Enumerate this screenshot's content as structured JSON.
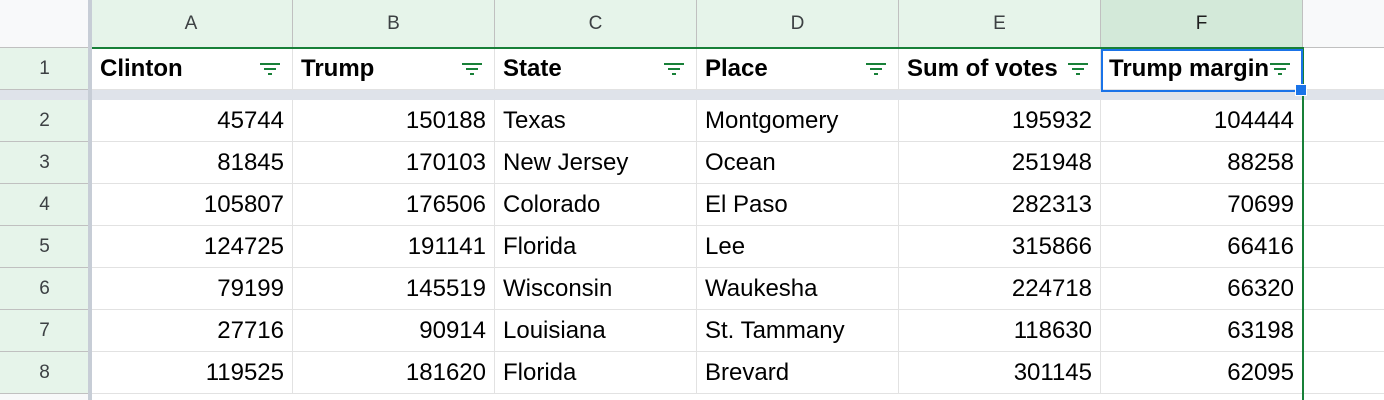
{
  "columns": [
    "A",
    "B",
    "C",
    "D",
    "E",
    "F"
  ],
  "rows": [
    "1",
    "2",
    "3",
    "4",
    "5",
    "6",
    "7",
    "8"
  ],
  "header_row": [
    "Clinton",
    "Trump",
    "State",
    "Place",
    "Sum of votes",
    "Trump margin"
  ],
  "data_rows": [
    [
      "45744",
      "150188",
      "Texas",
      "Montgomery",
      "195932",
      "104444"
    ],
    [
      "81845",
      "170103",
      "New Jersey",
      "Ocean",
      "251948",
      "88258"
    ],
    [
      "105807",
      "176506",
      "Colorado",
      "El Paso",
      "282313",
      "70699"
    ],
    [
      "124725",
      "191141",
      "Florida",
      "Lee",
      "315866",
      "66416"
    ],
    [
      "79199",
      "145519",
      "Wisconsin",
      "Waukesha",
      "224718",
      "66320"
    ],
    [
      "27716",
      "90914",
      "Louisiana",
      "St. Tammany",
      "118630",
      "63198"
    ],
    [
      "119525",
      "181620",
      "Florida",
      "Brevard",
      "301145",
      "62095"
    ]
  ],
  "colors": {
    "filter_green": "#188038",
    "selection_blue": "#1a73e8",
    "header_bg": "#f8f9fa",
    "selected_header_bg": "#e6f4ea"
  },
  "icons": {
    "filter": "filter-icon"
  }
}
